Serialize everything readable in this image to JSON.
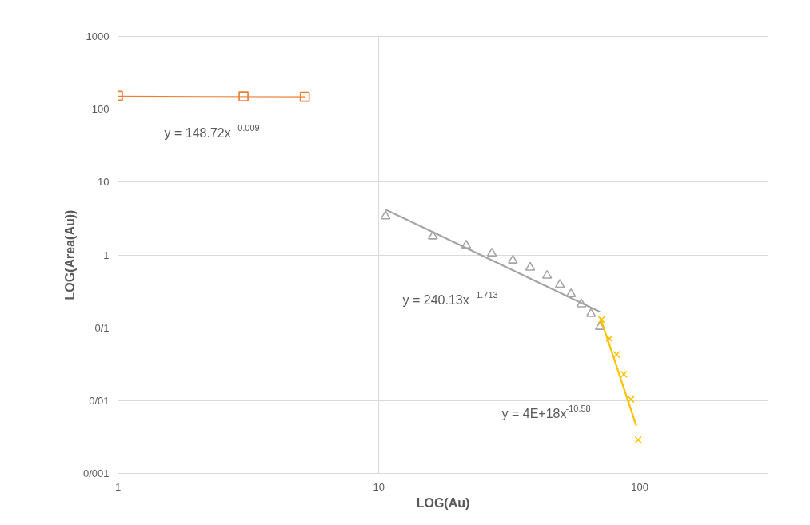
{
  "chart_data": {
    "type": "scatter",
    "xlabel": "LOG(Au)",
    "ylabel": "LOG(Area(Au))",
    "log": "xy",
    "grid": true,
    "xlim": [
      1,
      310
    ],
    "xticks": [
      1,
      10,
      100
    ],
    "ylim": [
      0.001,
      1000
    ],
    "yticks": [
      {
        "value": 0.001,
        "label": "0/001"
      },
      {
        "value": 0.01,
        "label": "0/01"
      },
      {
        "value": 0.1,
        "label": "0/1"
      },
      1,
      10,
      100,
      1000
    ],
    "series": [
      {
        "marker": "square",
        "color": "#ed7d31",
        "x": [
          1,
          3.03,
          5.2
        ],
        "values": [
          153,
          150,
          148
        ]
      },
      {
        "type": "line",
        "marker": "none",
        "line_style": "solid",
        "color": "#ed7d31",
        "x": [
          1,
          5.2
        ],
        "values": [
          148.7,
          146.5
        ]
      },
      {
        "marker": "triangle",
        "color": "#a5a5a5",
        "x": [
          10.6,
          16.1,
          21.6,
          27.1,
          32.6,
          38,
          44.1,
          49.4,
          54.5,
          59.7,
          65,
          70.3
        ],
        "values": [
          3.4,
          1.8,
          1.35,
          1.05,
          0.84,
          0.67,
          0.52,
          0.39,
          0.29,
          0.21,
          0.155,
          0.103
        ]
      },
      {
        "type": "line",
        "marker": "none",
        "line_style": "solid",
        "color": "#a5a5a5",
        "x": [
          10.6,
          70.3
        ],
        "values": [
          4.2,
          0.165
        ]
      },
      {
        "marker": "cross",
        "color": "#ffc000",
        "x": [
          71.3,
          76.5,
          81.5,
          86.9,
          92.5,
          98.6
        ],
        "values": [
          0.129,
          0.071,
          0.043,
          0.023,
          0.0104,
          0.0029
        ]
      },
      {
        "type": "line",
        "marker": "none",
        "line_style": "solid",
        "color": "#ffc000",
        "x": [
          70.5,
          97
        ],
        "values": [
          0.14,
          0.0045
        ]
      }
    ],
    "annotations": [
      "y = 148.72x$^{-0.009}$",
      "y = 240.13x$^{-1.713}$",
      "y = 4E+18x$^{-10.58}$"
    ]
  }
}
